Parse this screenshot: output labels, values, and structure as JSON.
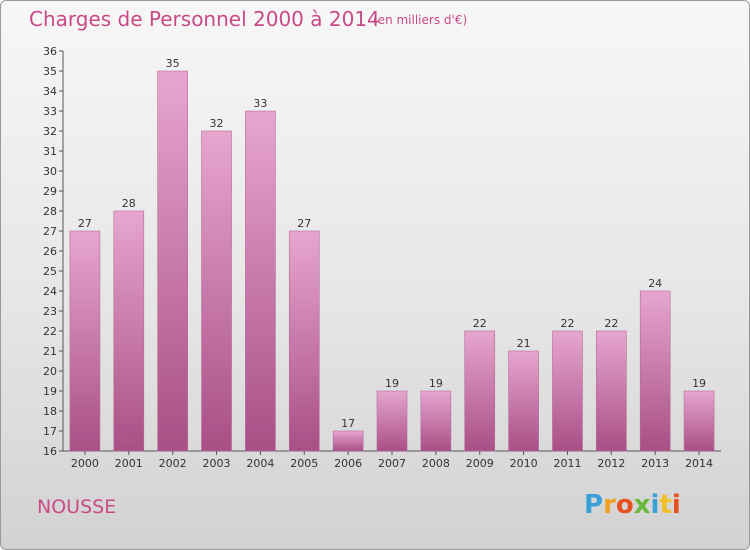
{
  "header": {
    "title": "Charges de Personnel 2000 à 2014",
    "subtitle": "(en milliers d'€)"
  },
  "footer": {
    "commune": "NOUSSE",
    "logo_text": "Proxiti",
    "logo_colors": [
      "#3aa0d8",
      "#f2a024",
      "#e8501e",
      "#6ab83a",
      "#3aa0d8",
      "#f2c024",
      "#e8501e"
    ]
  },
  "colors": {
    "accent": "#c94a86",
    "bar_top": "#e6a6cf",
    "bar_bottom": "#a94f85"
  },
  "chart_data": {
    "type": "bar",
    "categories": [
      "2000",
      "2001",
      "2002",
      "2003",
      "2004",
      "2005",
      "2006",
      "2007",
      "2008",
      "2009",
      "2010",
      "2011",
      "2012",
      "2013",
      "2014"
    ],
    "values": [
      27,
      28,
      35,
      32,
      33,
      27,
      17,
      19,
      19,
      22,
      21,
      22,
      22,
      24,
      19
    ],
    "title": "Charges de Personnel 2000 à 2014",
    "subtitle": "(en milliers d'€)",
    "ylim": [
      16,
      36
    ],
    "yticks": [
      16,
      17,
      18,
      19,
      20,
      21,
      22,
      23,
      24,
      25,
      26,
      27,
      28,
      29,
      30,
      31,
      32,
      33,
      34,
      35,
      36
    ],
    "grid": false,
    "legend": "none"
  }
}
